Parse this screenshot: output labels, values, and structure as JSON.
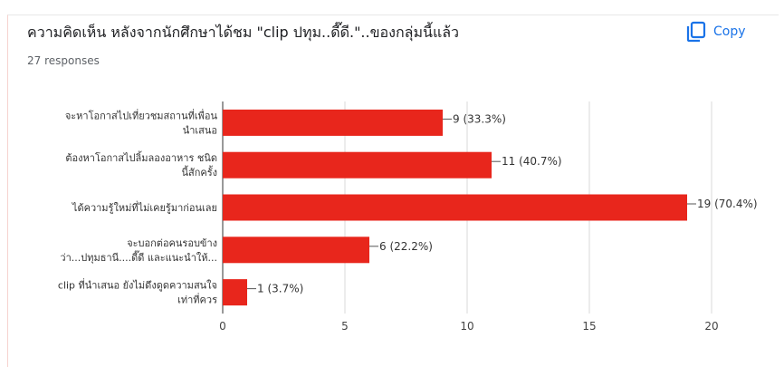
{
  "header": {
    "title": "ความคิดเห็น หลังจากนักศึกษาได้ชม \"clip ปทุม..ดี๊ดี.\"..ของกลุ่มนี้แล้ว",
    "responses": "27 responses",
    "copy_label": "Copy",
    "copy_icon": "copy-icon"
  },
  "colors": {
    "bar": "#e8261c",
    "accent": "#1a73e8"
  },
  "chart_data": {
    "type": "bar",
    "orientation": "horizontal",
    "categories": [
      [
        "จะหาโอกาสไปเที่ยวชมสถานที่เพื่อน",
        "นำเสนอ"
      ],
      [
        "ต้องหาโอกาสไปลิ้มลองอาหาร ชนิด",
        "นี้สักครั้ง"
      ],
      [
        "ได้ความรู้ใหม่ที่ไม่เคยรู้มาก่อนเลย"
      ],
      [
        "จะบอกต่อคนรอบข้าง",
        "ว่า...ปทุมธานี....ดี๊ดี และแนะนำให้..."
      ],
      [
        "clip ที่นำเสนอ ยังไม่ดึงดูดความสนใจ",
        "เท่าที่ควร"
      ]
    ],
    "values": [
      9,
      11,
      19,
      6,
      1
    ],
    "data_labels": [
      "9 (33.3%)",
      "11 (40.7%)",
      "19 (70.4%)",
      "6 (22.2%)",
      "1 (3.7%)"
    ],
    "xticks": [
      "0",
      "5",
      "10",
      "15",
      "20"
    ],
    "xlim": [
      0,
      20
    ],
    "grid": true
  }
}
